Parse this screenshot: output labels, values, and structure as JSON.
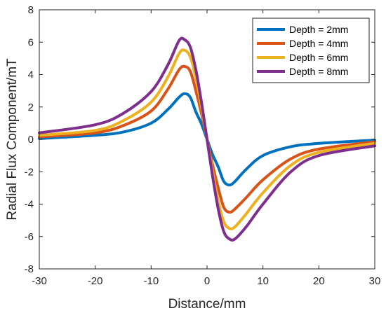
{
  "chart_data": {
    "type": "line",
    "title": "",
    "xlabel": "Distance/mm",
    "ylabel": "Radial Flux Component/mT",
    "xlim": [
      -30,
      30
    ],
    "ylim": [
      -8,
      8
    ],
    "xticks": [
      -30,
      -20,
      -10,
      0,
      10,
      20,
      30
    ],
    "yticks": [
      -8,
      -6,
      -4,
      -2,
      0,
      2,
      4,
      6,
      8
    ],
    "x_tick_labels": [
      "-30",
      "-20",
      "-10",
      "0",
      "10",
      "20",
      "30"
    ],
    "y_tick_labels": [
      "-8",
      "-6",
      "-4",
      "-2",
      "0",
      "2",
      "4",
      "6",
      "8"
    ],
    "grid": false,
    "legend_position": "top-right",
    "series": [
      {
        "name": "Depth = 2mm",
        "color": "#0072BD",
        "x": [
          -30,
          -20,
          -15,
          -10,
          -7,
          -5,
          -4,
          -3,
          -2,
          -1,
          0,
          1,
          2,
          3,
          4,
          5,
          7,
          10,
          15,
          20,
          30
        ],
        "y": [
          0.05,
          0.25,
          0.45,
          1.0,
          1.85,
          2.6,
          2.82,
          2.6,
          1.7,
          0.95,
          0,
          -0.95,
          -1.7,
          -2.6,
          -2.82,
          -2.6,
          -1.85,
          -1.0,
          -0.45,
          -0.25,
          -0.05
        ]
      },
      {
        "name": "Depth = 4mm",
        "color": "#D95319",
        "x": [
          -30,
          -20,
          -15,
          -10,
          -7,
          -5,
          -4,
          -3,
          -2,
          -1,
          0,
          1,
          2,
          3,
          4,
          5,
          7,
          10,
          15,
          20,
          30
        ],
        "y": [
          0.15,
          0.4,
          0.85,
          1.75,
          3.1,
          4.3,
          4.5,
          4.2,
          3.0,
          1.6,
          0,
          -1.6,
          -3.0,
          -4.2,
          -4.5,
          -4.3,
          -3.6,
          -2.5,
          -1.2,
          -0.6,
          -0.15
        ]
      },
      {
        "name": "Depth = 6mm",
        "color": "#EDB120",
        "x": [
          -30,
          -20,
          -15,
          -10,
          -7,
          -5,
          -4,
          -3,
          -2,
          -1,
          0,
          1,
          2,
          3,
          4,
          5,
          7,
          10,
          15,
          20,
          30
        ],
        "y": [
          0.25,
          0.55,
          1.15,
          2.3,
          3.85,
          5.3,
          5.5,
          5.1,
          3.8,
          2.0,
          0,
          -2.0,
          -3.8,
          -5.1,
          -5.5,
          -5.4,
          -4.6,
          -3.3,
          -1.6,
          -0.8,
          -0.25
        ]
      },
      {
        "name": "Depth = 8mm",
        "color": "#7E2F8E",
        "x": [
          -30,
          -20,
          -15,
          -10,
          -7,
          -5,
          -4,
          -3,
          -2,
          -1,
          0,
          1,
          2,
          3,
          4,
          5,
          7,
          10,
          15,
          20,
          30
        ],
        "y": [
          0.4,
          0.9,
          1.6,
          2.95,
          4.6,
          6.1,
          6.15,
          5.7,
          4.3,
          2.3,
          0,
          -2.3,
          -4.3,
          -5.7,
          -6.15,
          -6.15,
          -5.4,
          -4.0,
          -2.0,
          -1.0,
          -0.4
        ]
      }
    ]
  }
}
